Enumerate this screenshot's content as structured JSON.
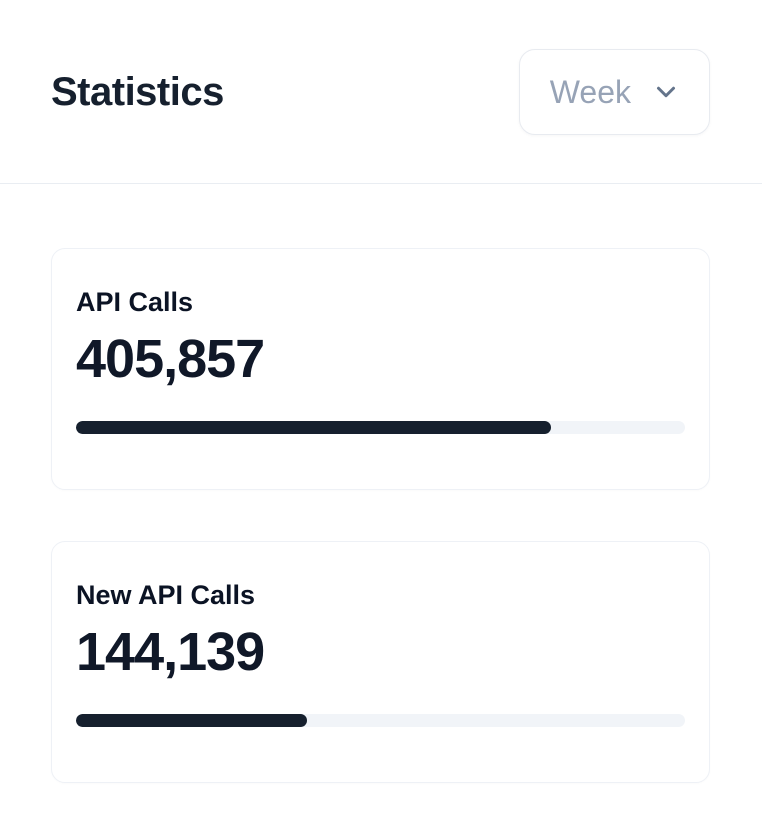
{
  "header": {
    "title": "Statistics",
    "period_selector": {
      "value": "Week",
      "icon": "chevron-down-icon"
    }
  },
  "stats": [
    {
      "label": "API Calls",
      "value": "405,857",
      "progress_percent": 78
    },
    {
      "label": "New API Calls",
      "value": "144,139",
      "progress_percent": 38
    }
  ],
  "colors": {
    "text_primary": "#101828",
    "text_muted": "#97a3b6",
    "progress_fill": "#16202e",
    "progress_track": "#f1f4f8",
    "card_border": "#eef1f6",
    "divider": "#e9edf2"
  }
}
